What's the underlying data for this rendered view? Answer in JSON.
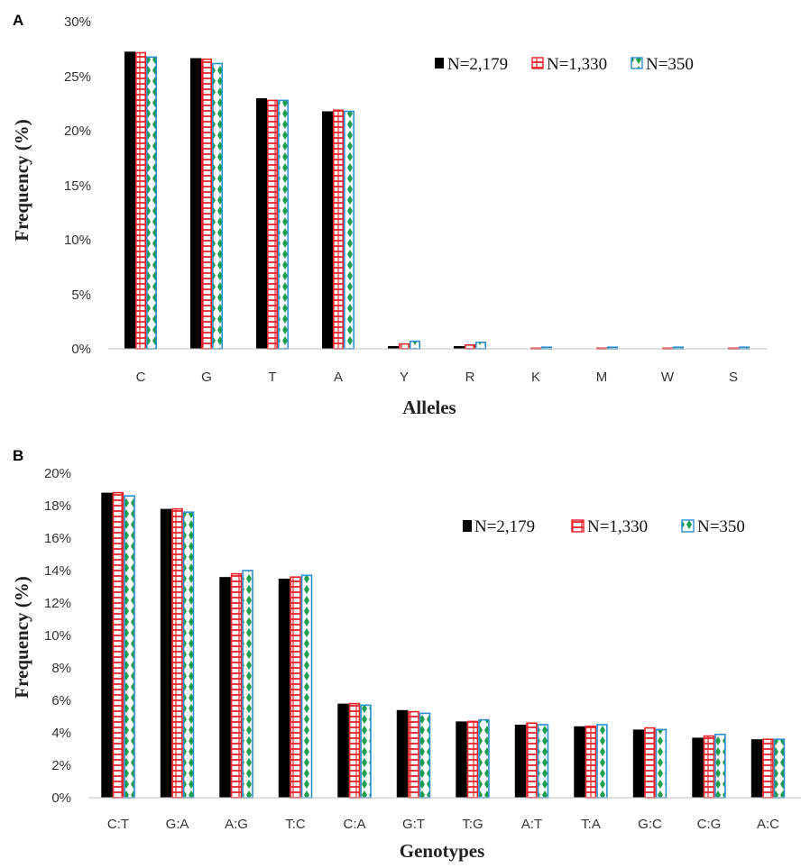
{
  "chart_data": [
    {
      "type": "bar",
      "panel_label": "A",
      "categories": [
        "C",
        "G",
        "T",
        "A",
        "Y",
        "R",
        "K",
        "M",
        "W",
        "S"
      ],
      "series": [
        {
          "name": "N=2,179",
          "values": [
            27.4,
            26.8,
            23.1,
            21.9,
            0.25,
            0.25,
            0.02,
            0.02,
            0.02,
            0.02
          ]
        },
        {
          "name": "N=1,330",
          "values": [
            27.3,
            26.7,
            22.9,
            22.0,
            0.45,
            0.35,
            0.06,
            0.06,
            0.06,
            0.06
          ]
        },
        {
          "name": "N=350",
          "values": [
            26.9,
            26.3,
            22.9,
            21.9,
            0.7,
            0.6,
            0.15,
            0.15,
            0.15,
            0.15
          ]
        }
      ],
      "y_ticks": [
        "0%",
        "5%",
        "10%",
        "15%",
        "20%",
        "25%",
        "30%"
      ],
      "ylim": [
        0,
        30
      ],
      "xlabel": "Alleles",
      "ylabel": "Frequency (%)",
      "legend_position": "top-right",
      "grid": false
    },
    {
      "type": "bar",
      "panel_label": "B",
      "categories": [
        "C:T",
        "G:A",
        "A:G",
        "T:C",
        "C:A",
        "G:T",
        "T:G",
        "A:T",
        "T:A",
        "G:C",
        "C:G",
        "A:C"
      ],
      "series": [
        {
          "name": "N=2,179",
          "values": [
            18.8,
            17.8,
            13.6,
            13.5,
            5.8,
            5.4,
            4.7,
            4.5,
            4.4,
            4.2,
            3.7,
            3.6
          ]
        },
        {
          "name": "N=1,330",
          "values": [
            18.8,
            17.8,
            13.8,
            13.6,
            5.8,
            5.3,
            4.7,
            4.6,
            4.4,
            4.3,
            3.8,
            3.6
          ]
        },
        {
          "name": "N=350",
          "values": [
            18.6,
            17.6,
            14.0,
            13.7,
            5.7,
            5.2,
            4.8,
            4.5,
            4.5,
            4.2,
            3.9,
            3.6
          ]
        }
      ],
      "y_ticks": [
        "0%",
        "2%",
        "4%",
        "6%",
        "8%",
        "10%",
        "12%",
        "14%",
        "16%",
        "18%",
        "20%"
      ],
      "ylim": [
        0,
        20
      ],
      "xlabel": "Genotypes",
      "ylabel": "Frequency (%)",
      "legend_position": "top-right",
      "grid": false
    }
  ],
  "colors": {
    "series_1": "#000000",
    "series_2": "#e8232a",
    "series_3_edge": "#2b8fd0",
    "series_3_fill": "#1d9e4a",
    "axis": "#bfbfbf"
  }
}
